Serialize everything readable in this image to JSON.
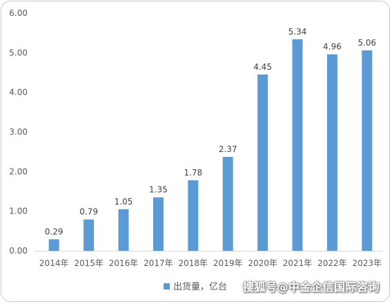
{
  "chart_data": {
    "type": "bar",
    "categories": [
      "2014年",
      "2015年",
      "2016年",
      "2017年",
      "2018年",
      "2019年",
      "2020年",
      "2021年",
      "2022年",
      "2023年"
    ],
    "series": [
      {
        "name": "出货量，亿台",
        "values": [
          0.29,
          0.79,
          1.05,
          1.35,
          1.78,
          2.37,
          4.45,
          5.34,
          4.96,
          5.06
        ]
      }
    ],
    "data_labels": [
      "0.29",
      "0.79",
      "1.05",
      "1.35",
      "1.78",
      "2.37",
      "4.45",
      "5.34",
      "4.96",
      "5.06"
    ],
    "y_ticks": [
      "0.00",
      "1.00",
      "2.00",
      "3.00",
      "4.00",
      "5.00",
      "6.00"
    ],
    "ylim": [
      0,
      6
    ],
    "grid": false,
    "legend": "bottom",
    "bar_color": "#5b9bd5",
    "title": "",
    "xlabel": "",
    "ylabel": ""
  },
  "watermark": "搜狐号@中金企信国际咨询"
}
